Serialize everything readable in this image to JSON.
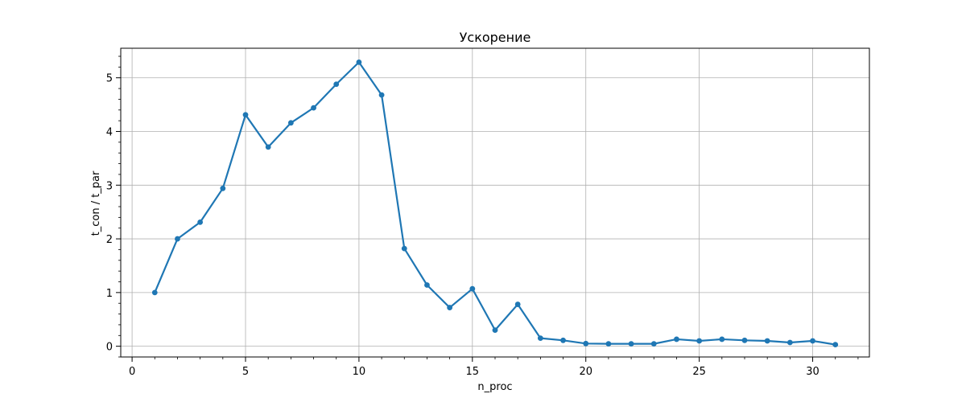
{
  "chart_data": {
    "type": "line",
    "title": "Ускорение",
    "xlabel": "n_proc",
    "ylabel": "t_con / t_par",
    "xlim": [
      -0.5,
      32.5
    ],
    "ylim": [
      -0.2,
      5.55
    ],
    "x_ticks": [
      0,
      5,
      10,
      15,
      20,
      25,
      30
    ],
    "y_ticks": [
      0,
      1,
      2,
      3,
      4,
      5
    ],
    "x_minor_step": 1,
    "y_minor_step": 0.2,
    "grid": true,
    "line_color": "#1f77b4",
    "marker": "circle",
    "series": [
      {
        "x": [
          1,
          2,
          3,
          4,
          5,
          6,
          7,
          8,
          9,
          10,
          11,
          12,
          13,
          14,
          15,
          16,
          17,
          18,
          19,
          20,
          21,
          22,
          23,
          24,
          25,
          26,
          27,
          28,
          29,
          30,
          31
        ],
        "y": [
          1.0,
          2.0,
          2.31,
          2.94,
          4.31,
          3.71,
          4.16,
          4.44,
          4.88,
          5.29,
          4.68,
          1.82,
          1.14,
          0.72,
          1.07,
          0.3,
          0.78,
          0.15,
          0.11,
          0.05,
          0.045,
          0.045,
          0.045,
          0.13,
          0.1,
          0.13,
          0.11,
          0.1,
          0.07,
          0.1,
          0.03
        ]
      }
    ]
  }
}
